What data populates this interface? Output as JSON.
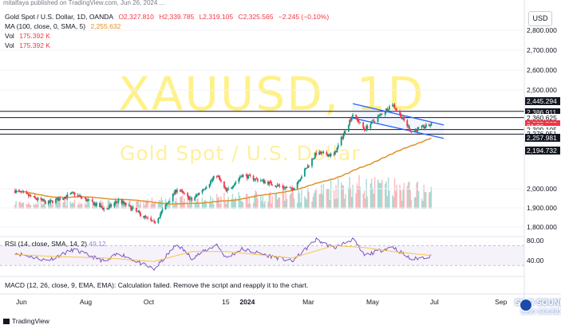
{
  "header": {
    "publisher_line": "mitalfaya published on TradingView.com, Jun 26, 2024 ..."
  },
  "legend": {
    "symbol": "Gold Spot / U.S. Dollar, 1D, OANDA",
    "open": "O2,327.810",
    "high": "H2,339.785",
    "low": "L2,319.105",
    "close": "C2,325.565",
    "change": "−2.245 (−0.10%)",
    "ma_label": "MA (100, close, 0, SMA, 5)",
    "ma_value": "2,255.632",
    "vol1_label": "Vol",
    "vol1_value": "175.392 K",
    "vol2_label": "Vol",
    "vol2_value": "175.392 K"
  },
  "watermark": {
    "ticker": "XAUUSD, 1D",
    "name": "Gold Spot / U.S. Dollar"
  },
  "currency_button": "USD",
  "rsi_legend": {
    "label": "RSI (14, close, SMA, 14, 2)",
    "value": "49.12"
  },
  "macd_legend": "MACD (12, 26, close, 9, EMA, EMA): Calculation failed. Remove the script and reapply it to the chart.",
  "branding": {
    "tradingview": "TradingView",
    "sino_title": "SINO SOUND",
    "sino_sub": "SINO SOUND"
  },
  "price_tags": [
    {
      "text": "2,445.294",
      "style": "dark",
      "y_value": 2445.294
    },
    {
      "text": "2,391.916",
      "style": "white",
      "y_value": 2391.916
    },
    {
      "text": "2,386.911",
      "style": "dark",
      "y_value": 2386.911
    },
    {
      "text": "2,360.625",
      "style": "white",
      "y_value": 2360.625
    },
    {
      "text": "2,325.565",
      "style": "red",
      "y_value": 2325.565
    },
    {
      "text": "21:06",
      "style": "red",
      "y_value": 2313
    },
    {
      "text": "2,309.105",
      "style": "white",
      "y_value": 2300
    },
    {
      "text": "2,276.951",
      "style": "white",
      "y_value": 2276.951
    },
    {
      "text": "2,257.981",
      "style": "dark",
      "y_value": 2257.981
    },
    {
      "text": "2,194.732",
      "style": "dark",
      "y_value": 2194.732
    }
  ],
  "chart_data": [
    {
      "type": "candlestick",
      "title": "XAUUSD, 1D",
      "currency": "USD",
      "ylim": [
        1760,
        2880
      ],
      "ytick_values": [
        2800,
        2700,
        2600,
        2500,
        2000,
        1900,
        1800
      ],
      "ytick_labels": [
        "2,800.000",
        "2,700.000",
        "2,600.000",
        "2,500.000",
        "2,000.000",
        "1,900.000",
        "1,800.000"
      ],
      "x_labels": [
        "Jun",
        "Aug",
        "Oct",
        "15",
        "2024",
        "Mar",
        "May",
        "Jul",
        "Sep"
      ],
      "x_label_dates": [
        "2023-06-01",
        "2023-08-01",
        "2023-10-01",
        "2023-12-15",
        "2024-01-01",
        "2024-03-01",
        "2024-05-01",
        "2024-07-01",
        "2024-09-01"
      ],
      "horizontal_levels": [
        2391.916,
        2360.625,
        2300,
        2276.951
      ],
      "channel": {
        "upper": [
          [
            "2024-04-12",
            2431
          ],
          [
            "2024-07-08",
            2323
          ]
        ],
        "lower": [
          [
            "2024-04-12",
            2358
          ],
          [
            "2024-07-08",
            2255
          ]
        ]
      },
      "last_close": 2325.565,
      "ma100_last": 2255.632,
      "trend_anchors": [
        [
          "2023-05-25",
          1990
        ],
        [
          "2023-06-25",
          1925
        ],
        [
          "2023-07-20",
          1975
        ],
        [
          "2023-08-20",
          1890
        ],
        [
          "2023-09-01",
          1940
        ],
        [
          "2023-10-05",
          1820
        ],
        [
          "2023-10-27",
          2000
        ],
        [
          "2023-11-10",
          1940
        ],
        [
          "2023-12-04",
          2070
        ],
        [
          "2023-12-13",
          1985
        ],
        [
          "2023-12-28",
          2070
        ],
        [
          "2024-02-14",
          1995
        ],
        [
          "2024-03-08",
          2180
        ],
        [
          "2024-03-25",
          2170
        ],
        [
          "2024-04-12",
          2380
        ],
        [
          "2024-04-23",
          2300
        ],
        [
          "2024-05-20",
          2430
        ],
        [
          "2024-06-07",
          2290
        ],
        [
          "2024-06-26",
          2325
        ]
      ],
      "volume_profile": [
        [
          "2023-05-25",
          0.25
        ],
        [
          "2023-09-01",
          0.25
        ],
        [
          "2024-03-01",
          0.6
        ],
        [
          "2024-04-01",
          1.0
        ],
        [
          "2024-05-20",
          0.85
        ],
        [
          "2024-06-26",
          0.7
        ]
      ]
    },
    {
      "type": "line",
      "title": "RSI (14, close, SMA, 14, 2)",
      "ylim": [
        25,
        90
      ],
      "ytick_values": [
        80,
        40
      ],
      "ytick_labels": [
        "80.00",
        "40.00"
      ],
      "band": [
        30,
        70
      ],
      "last_value": 49.12,
      "rsi_anchors": [
        [
          "2023-05-25",
          55
        ],
        [
          "2023-06-25",
          40
        ],
        [
          "2023-07-20",
          62
        ],
        [
          "2023-08-20",
          37
        ],
        [
          "2023-09-01",
          55
        ],
        [
          "2023-10-05",
          22
        ],
        [
          "2023-10-27",
          73
        ],
        [
          "2023-11-10",
          45
        ],
        [
          "2023-12-04",
          72
        ],
        [
          "2023-12-13",
          45
        ],
        [
          "2023-12-28",
          63
        ],
        [
          "2024-02-14",
          38
        ],
        [
          "2024-03-08",
          82
        ],
        [
          "2024-03-25",
          65
        ],
        [
          "2024-04-12",
          83
        ],
        [
          "2024-04-23",
          50
        ],
        [
          "2024-05-20",
          68
        ],
        [
          "2024-06-07",
          42
        ],
        [
          "2024-06-26",
          49
        ]
      ],
      "rsi_ma_anchors": [
        [
          "2023-05-25",
          52
        ],
        [
          "2023-07-01",
          48
        ],
        [
          "2023-08-20",
          45
        ],
        [
          "2023-10-05",
          38
        ],
        [
          "2023-11-10",
          58
        ],
        [
          "2023-12-13",
          58
        ],
        [
          "2024-02-14",
          45
        ],
        [
          "2024-03-25",
          70
        ],
        [
          "2024-04-23",
          66
        ],
        [
          "2024-05-20",
          58
        ],
        [
          "2024-06-26",
          50
        ]
      ]
    }
  ]
}
